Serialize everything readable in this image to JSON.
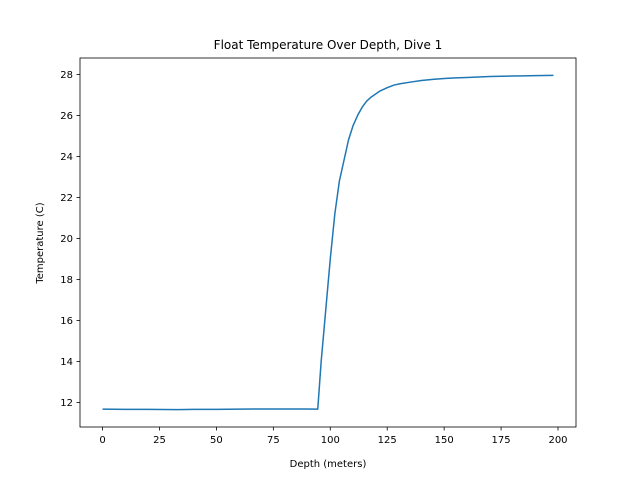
{
  "chart_data": {
    "type": "line",
    "title": "Float Temperature Over Depth, Dive 1",
    "xlabel": "Depth (meters)",
    "ylabel": "Temperature (C)",
    "xlim": [
      -9.9,
      207.9
    ],
    "ylim": [
      10.8,
      28.8
    ],
    "xticks": [
      0,
      25,
      50,
      75,
      100,
      125,
      150,
      175,
      200
    ],
    "yticks": [
      12,
      14,
      16,
      18,
      20,
      22,
      24,
      26,
      28
    ],
    "grid": false,
    "colors": {
      "series": "#1f77b4"
    },
    "series": [
      {
        "x": [
          0,
          10,
          20,
          33,
          40,
          50,
          60,
          70,
          80,
          88,
          94.5,
          96,
          98,
          100,
          102,
          104,
          106,
          108,
          110,
          112,
          114,
          116,
          118,
          120,
          122,
          125,
          128,
          131,
          135,
          140,
          145,
          150,
          155,
          160,
          165,
          170,
          175,
          180,
          185,
          190,
          198
        ],
        "y": [
          11.67,
          11.66,
          11.66,
          11.65,
          11.66,
          11.66,
          11.67,
          11.68,
          11.68,
          11.68,
          11.67,
          14.0,
          16.5,
          19.0,
          21.2,
          22.8,
          23.8,
          24.8,
          25.5,
          26.0,
          26.4,
          26.7,
          26.9,
          27.05,
          27.2,
          27.35,
          27.48,
          27.55,
          27.62,
          27.7,
          27.76,
          27.8,
          27.83,
          27.85,
          27.87,
          27.9,
          27.91,
          27.92,
          27.93,
          27.94,
          27.95
        ]
      }
    ]
  }
}
